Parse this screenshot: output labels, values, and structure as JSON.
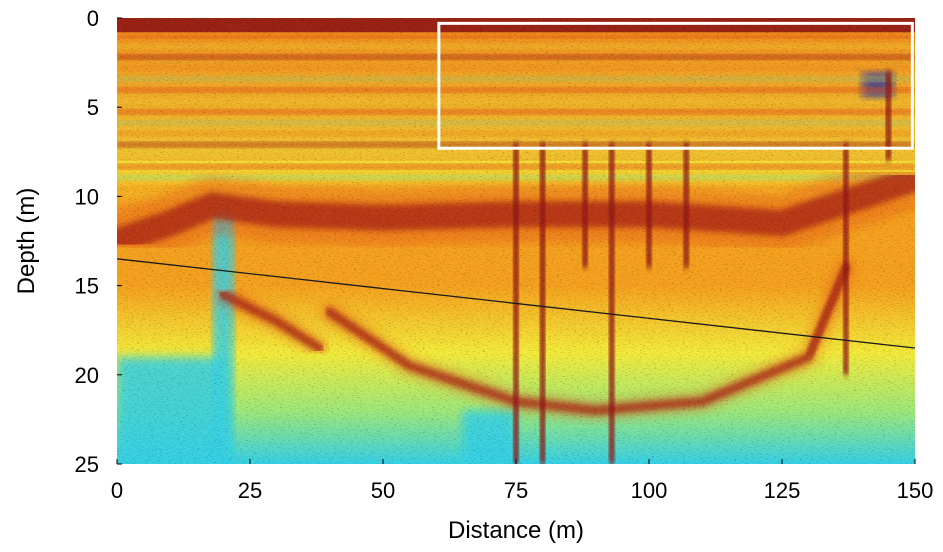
{
  "chart_data": {
    "type": "heatmap",
    "title": "",
    "xlabel": "Distance (m)",
    "ylabel": "Depth (m)",
    "xlim": [
      0,
      150
    ],
    "ylim": [
      0,
      25
    ],
    "y_inverted": true,
    "xticks": [
      0,
      25,
      50,
      75,
      100,
      125,
      150
    ],
    "yticks": [
      0,
      5,
      10,
      15,
      20,
      25
    ],
    "grid": false,
    "legend": "none",
    "colormap": [
      "#0a3fbf",
      "#1f8fe0",
      "#35d0e6",
      "#9fe87a",
      "#f4ea3a",
      "#f5a11f",
      "#e24a12",
      "#8f1414"
    ],
    "reflectors": [
      {
        "name": "near-surface high amplitude band",
        "x": [
          0,
          150
        ],
        "depth": [
          0,
          0.8
        ],
        "amplitude": "very high"
      },
      {
        "name": "upper stratified layers",
        "x": [
          0,
          150
        ],
        "depth": [
          1,
          8
        ],
        "amplitude": "high, layered"
      },
      {
        "name": "main reflector bowl",
        "x": [
          0,
          150
        ],
        "depth_profile": [
          [
            0,
            12.5
          ],
          [
            10,
            11.5
          ],
          [
            18,
            10.5
          ],
          [
            30,
            11.0
          ],
          [
            50,
            11.2
          ],
          [
            75,
            11.0
          ],
          [
            100,
            11.0
          ],
          [
            125,
            11.5
          ],
          [
            150,
            9.0
          ]
        ],
        "amplitude": "very high"
      },
      {
        "name": "lower basin reflector",
        "depth_profile": [
          [
            40,
            16.5
          ],
          [
            55,
            19.5
          ],
          [
            75,
            21.5
          ],
          [
            90,
            22.0
          ],
          [
            110,
            21.5
          ],
          [
            130,
            19.0
          ],
          [
            137,
            14.0
          ]
        ],
        "amplitude": "high"
      },
      {
        "name": "left dipping lobe",
        "depth_profile": [
          [
            20,
            15.5
          ],
          [
            30,
            17.0
          ],
          [
            38,
            18.5
          ]
        ],
        "amplitude": "high"
      }
    ],
    "vertical_anomalies": [
      {
        "x": 75,
        "depth": [
          7,
          25
        ]
      },
      {
        "x": 80,
        "depth": [
          7,
          25
        ]
      },
      {
        "x": 88,
        "depth": [
          7,
          14
        ]
      },
      {
        "x": 93,
        "depth": [
          7,
          25
        ]
      },
      {
        "x": 100,
        "depth": [
          7,
          14
        ]
      },
      {
        "x": 107,
        "depth": [
          7,
          14
        ]
      },
      {
        "x": 137,
        "depth": [
          7,
          20
        ]
      },
      {
        "x": 145,
        "depth": [
          3,
          8
        ]
      }
    ],
    "low_amplitude_zones": [
      {
        "x": [
          18,
          22
        ],
        "depth": [
          11,
          25
        ]
      },
      {
        "x": [
          65,
          75
        ],
        "depth": [
          22,
          25
        ]
      },
      {
        "x": [
          0,
          20
        ],
        "depth": [
          19,
          25
        ]
      },
      {
        "x": [
          140,
          146
        ],
        "depth": [
          3,
          4.5
        ]
      }
    ],
    "lines": [
      {
        "name": "dipping line",
        "points": [
          [
            0,
            13.5
          ],
          [
            150,
            18.5
          ]
        ],
        "color": "#1a1a1a"
      }
    ],
    "annotations": [
      {
        "type": "rectangle",
        "x": [
          60.5,
          149.5
        ],
        "depth": [
          0.3,
          7.3
        ],
        "color": "#ffffff"
      }
    ]
  }
}
